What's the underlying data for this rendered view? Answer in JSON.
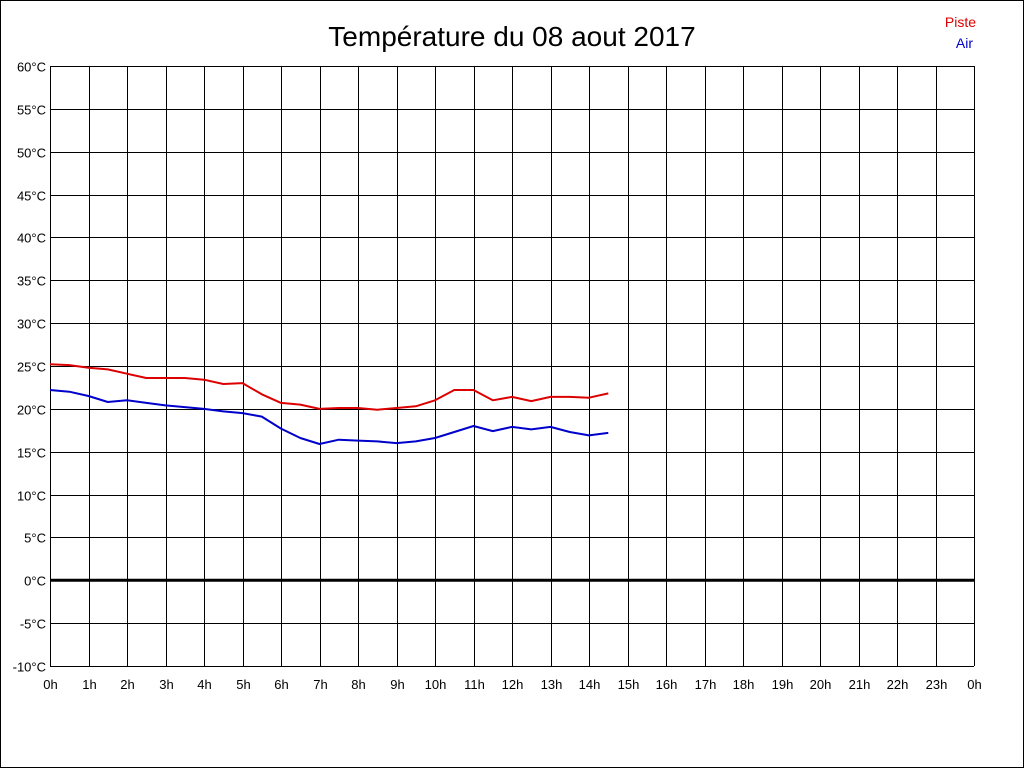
{
  "chart_data": {
    "type": "line",
    "title": "Température du 08 aout 2017",
    "xlabel": "",
    "ylabel": "",
    "x_ticks": [
      "0h",
      "1h",
      "2h",
      "3h",
      "4h",
      "5h",
      "6h",
      "7h",
      "8h",
      "9h",
      "10h",
      "11h",
      "12h",
      "13h",
      "14h",
      "15h",
      "16h",
      "17h",
      "18h",
      "19h",
      "20h",
      "21h",
      "22h",
      "23h",
      "0h"
    ],
    "xlim": [
      0,
      24
    ],
    "y_ticks": [
      "60°C",
      "55°C",
      "50°C",
      "45°C",
      "40°C",
      "35°C",
      "30°C",
      "25°C",
      "20°C",
      "15°C",
      "10°C",
      "5°C",
      "0°C",
      "-5°C",
      "-10°C"
    ],
    "ylim": [
      -10,
      60
    ],
    "ytick_step": 5,
    "grid": true,
    "zero_line": true,
    "legend_position": "top-right",
    "series": [
      {
        "name": "Piste",
        "color": "#dd0000",
        "x": [
          0,
          0.5,
          1,
          1.5,
          2,
          2.5,
          3,
          3.5,
          4,
          4.5,
          5,
          5.5,
          6,
          6.5,
          7,
          7.5,
          8,
          8.5,
          9,
          9.5,
          10,
          10.5,
          11,
          11.5,
          12,
          12.5,
          13,
          13.5,
          14,
          14.5
        ],
        "y": [
          25.2,
          25.1,
          24.8,
          24.6,
          24.1,
          23.6,
          23.6,
          23.6,
          23.4,
          22.9,
          23.0,
          21.7,
          20.7,
          20.5,
          20.0,
          20.1,
          20.1,
          19.9,
          20.1,
          20.3,
          21.0,
          22.2,
          22.2,
          21.0,
          21.4,
          20.9,
          21.4,
          21.4,
          21.3,
          21.8
        ]
      },
      {
        "name": "Air",
        "color": "#0000cc",
        "x": [
          0,
          0.5,
          1,
          1.5,
          2,
          2.5,
          3,
          3.5,
          4,
          4.5,
          5,
          5.5,
          6,
          6.5,
          7,
          7.5,
          8,
          8.5,
          9,
          9.5,
          10,
          10.5,
          11,
          11.5,
          12,
          12.5,
          13,
          13.5,
          14,
          14.5
        ],
        "y": [
          22.2,
          22.0,
          21.5,
          20.8,
          21.0,
          20.7,
          20.4,
          20.2,
          20.0,
          19.7,
          19.5,
          19.1,
          17.7,
          16.6,
          15.9,
          16.4,
          16.3,
          16.2,
          16.0,
          16.2,
          16.6,
          17.3,
          18.0,
          17.4,
          17.9,
          17.6,
          17.9,
          17.3,
          16.9,
          17.2
        ]
      }
    ]
  }
}
